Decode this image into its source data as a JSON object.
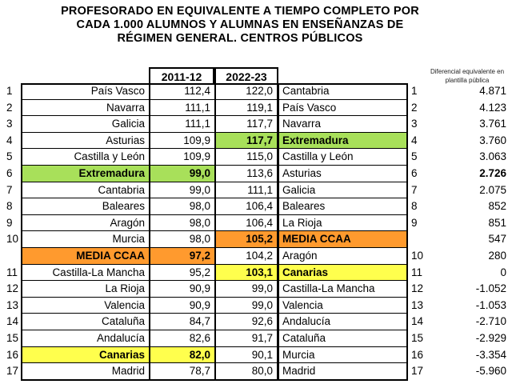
{
  "title": {
    "line1": "PROFESORADO EN EQUIVALENTE A TIEMPO COMPLETO POR",
    "line2": "CADA 1.000 ALUMNOS Y ALUMNAS EN ENSEÑANZAS DE",
    "line3": "RÉGIMEN GENERAL. CENTROS PÚBLICOS"
  },
  "headers": {
    "col_2011": "2011-12",
    "col_2022": "2022-23",
    "diff_note": "Diferencial equivalente en plantilla pública"
  },
  "highlight_colors": {
    "extremadura": "#a8e05a",
    "media": "#ff9a2e",
    "canarias": "#ffff4d"
  },
  "rows": [
    {
      "lnum": "1",
      "name1": "País Vasco",
      "v1": "112,4",
      "v2": "122,0",
      "name2": "Cantabria",
      "rnum": "1",
      "diff": "4.871"
    },
    {
      "lnum": "2",
      "name1": "Navarra",
      "v1": "111,1",
      "v2": "119,1",
      "name2": "País Vasco",
      "rnum": "2",
      "diff": "4.123"
    },
    {
      "lnum": "3",
      "name1": "Galicia",
      "v1": "111,1",
      "v2": "117,7",
      "name2": "Navarra",
      "rnum": "3",
      "diff": "3.761"
    },
    {
      "lnum": "4",
      "name1": "Asturias",
      "v1": "109,9",
      "v2": "117,7",
      "name2": "Extremadura",
      "rnum": "4",
      "diff": "3.760",
      "hl2": "g"
    },
    {
      "lnum": "5",
      "name1": "Castilla y León",
      "v1": "109,9",
      "v2": "115,0",
      "name2": "Castilla y León",
      "rnum": "5",
      "diff": "3.063"
    },
    {
      "lnum": "6",
      "name1": "Extremadura",
      "v1": "99,0",
      "v2": "113,6",
      "name2": "Asturias",
      "rnum": "6",
      "diff": "2.726",
      "hl1": "g",
      "bdiff": true
    },
    {
      "lnum": "7",
      "name1": "Cantabria",
      "v1": "99,0",
      "v2": "111,1",
      "name2": "Galicia",
      "rnum": "7",
      "diff": "2.075"
    },
    {
      "lnum": "8",
      "name1": "Baleares",
      "v1": "98,0",
      "v2": "106,4",
      "name2": "Baleares",
      "rnum": "8",
      "diff": "852"
    },
    {
      "lnum": "9",
      "name1": "Aragón",
      "v1": "98,0",
      "v2": "106,4",
      "name2": "La Rioja",
      "rnum": "9",
      "diff": "851"
    },
    {
      "lnum": "10",
      "name1": "Murcia",
      "v1": "98,0",
      "v2": "105,2",
      "name2": "MEDIA CCAA",
      "rnum": "",
      "diff": "547",
      "hl2": "o"
    },
    {
      "lnum": "",
      "name1": "MEDIA CCAA",
      "v1": "97,2",
      "v2": "104,2",
      "name2": "Aragón",
      "rnum": "10",
      "diff": "280",
      "hl1": "o"
    },
    {
      "lnum": "11",
      "name1": "Castilla-La Mancha",
      "v1": "95,2",
      "v2": "103,1",
      "name2": "Canarias",
      "rnum": "11",
      "diff": "0",
      "hl2": "y"
    },
    {
      "lnum": "12",
      "name1": "La Rioja",
      "v1": "90,9",
      "v2": "99,0",
      "name2": "Castilla-La Mancha",
      "rnum": "12",
      "diff": "-1.052"
    },
    {
      "lnum": "13",
      "name1": "Valencia",
      "v1": "90,9",
      "v2": "99,0",
      "name2": "Valencia",
      "rnum": "13",
      "diff": "-1.053"
    },
    {
      "lnum": "14",
      "name1": "Cataluña",
      "v1": "84,7",
      "v2": "92,6",
      "name2": "Andalucía",
      "rnum": "14",
      "diff": "-2.710"
    },
    {
      "lnum": "15",
      "name1": "Andalucía",
      "v1": "82,6",
      "v2": "91,7",
      "name2": "Cataluña",
      "rnum": "15",
      "diff": "-2.929"
    },
    {
      "lnum": "16",
      "name1": "Canarias",
      "v1": "82,0",
      "v2": "90,1",
      "name2": "Murcia",
      "rnum": "16",
      "diff": "-3.354",
      "hl1": "y"
    },
    {
      "lnum": "17",
      "name1": "Madrid",
      "v1": "78,7",
      "v2": "80,0",
      "name2": "Madrid",
      "rnum": "17",
      "diff": "-5.960"
    }
  ]
}
